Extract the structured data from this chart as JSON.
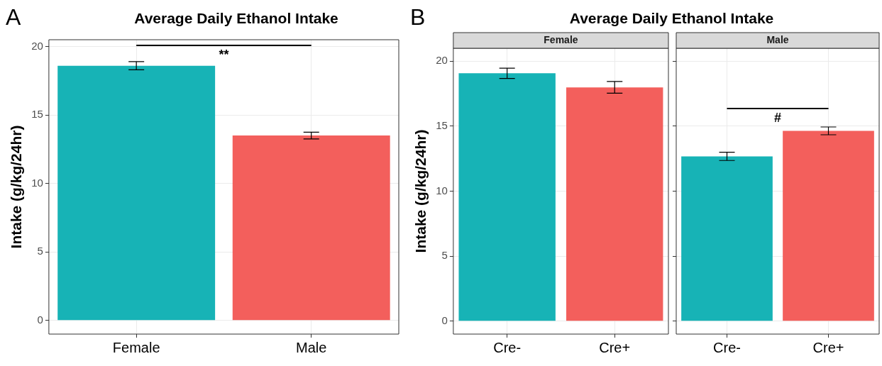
{
  "chart_data": [
    {
      "type": "bar",
      "title": "Average Daily Ethanol Intake",
      "ylabel": "Intake (g/kg/24hr)",
      "categories": [
        "Female",
        "Male"
      ],
      "values": [
        18.6,
        13.5
      ],
      "errors": [
        0.3,
        0.25
      ],
      "colors": [
        "#17b3b6",
        "#f35f5c"
      ],
      "ylim": [
        -1,
        20.5
      ],
      "yticks": [
        0,
        5,
        10,
        15,
        20
      ],
      "grid": true,
      "legend": false,
      "annotations": [
        "A",
        "**"
      ]
    },
    {
      "type": "bar",
      "title": "Average Daily Ethanol Intake",
      "subtitle": "Female",
      "ylabel": "Intake (g/kg/24hr)",
      "categories": [
        "Cre-",
        "Cre+"
      ],
      "values": [
        19.07,
        17.99
      ],
      "errors": [
        0.4,
        0.45
      ],
      "colors": [
        "#17b3b6",
        "#f35f5c"
      ],
      "ylim": [
        -1,
        21
      ],
      "yticks": [
        0,
        5,
        10,
        15,
        20
      ],
      "grid": true,
      "legend": false,
      "annotations": [
        "B"
      ]
    },
    {
      "type": "bar",
      "subtitle": "Male",
      "categories": [
        "Cre-",
        "Cre+"
      ],
      "values": [
        12.68,
        14.64
      ],
      "errors": [
        0.32,
        0.3
      ],
      "colors": [
        "#17b3b6",
        "#f35f5c"
      ],
      "ylim": [
        -1,
        21
      ],
      "yticks": [
        0,
        5,
        10,
        15,
        20
      ],
      "grid": true,
      "legend": false,
      "tick_labels": "x",
      "annotations": [
        "#"
      ]
    }
  ]
}
